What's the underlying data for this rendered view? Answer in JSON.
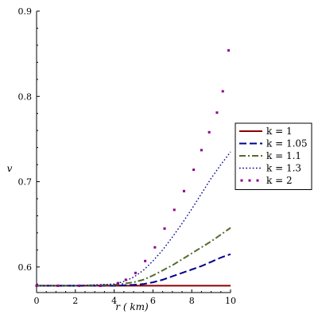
{
  "chart_data": {
    "type": "line",
    "xlabel": "r ( km)",
    "ylabel": "v",
    "xlim": [
      0,
      10
    ],
    "ylim": [
      0.57,
      0.9
    ],
    "x_ticks": [
      0,
      2,
      4,
      6,
      8,
      10
    ],
    "y_ticks": [
      0.6,
      0.7,
      0.8,
      0.9
    ],
    "grid": false,
    "legend_position": "right",
    "series": [
      {
        "name": "k = 1",
        "color": "#8b0000",
        "style": "solid",
        "x": [
          0,
          2,
          4,
          6,
          8,
          10
        ],
        "y": [
          0.578,
          0.578,
          0.578,
          0.578,
          0.578,
          0.578
        ]
      },
      {
        "name": "k = 1.05",
        "color": "#00008b",
        "style": "dashed",
        "x": [
          0,
          2,
          4,
          5,
          5.5,
          6,
          6.5,
          7,
          7.5,
          8,
          8.5,
          9,
          9.5,
          10
        ],
        "y": [
          0.578,
          0.578,
          0.578,
          0.579,
          0.58,
          0.582,
          0.585,
          0.589,
          0.593,
          0.597,
          0.601,
          0.606,
          0.611,
          0.615
        ]
      },
      {
        "name": "k = 1.1",
        "color": "#556b2f",
        "style": "dashdot",
        "x": [
          0,
          2,
          4,
          5,
          5.5,
          6,
          6.5,
          7,
          7.5,
          8,
          8.5,
          9,
          9.5,
          10
        ],
        "y": [
          0.578,
          0.578,
          0.579,
          0.582,
          0.585,
          0.59,
          0.596,
          0.602,
          0.609,
          0.616,
          0.623,
          0.63,
          0.638,
          0.646
        ]
      },
      {
        "name": "k = 1.3",
        "color": "#00008b",
        "style": "dotted",
        "x": [
          0,
          2,
          4,
          4.5,
          5,
          5.5,
          6,
          6.5,
          7,
          7.5,
          8,
          8.5,
          9,
          9.5,
          10
        ],
        "y": [
          0.578,
          0.578,
          0.58,
          0.583,
          0.588,
          0.596,
          0.607,
          0.62,
          0.635,
          0.651,
          0.668,
          0.686,
          0.704,
          0.72,
          0.735
        ]
      },
      {
        "name": "k = 2",
        "color": "#8b008b",
        "style": "points",
        "x": [
          0,
          1.1,
          2.2,
          3.3,
          4.2,
          4.6,
          5.1,
          5.6,
          6.1,
          6.6,
          7.1,
          7.6,
          8.1,
          8.5,
          8.9,
          9.3,
          9.6,
          9.9
        ],
        "y": [
          0.578,
          0.578,
          0.578,
          0.578,
          0.581,
          0.585,
          0.593,
          0.607,
          0.623,
          0.645,
          0.667,
          0.689,
          0.714,
          0.737,
          0.758,
          0.781,
          0.806,
          0.854
        ]
      }
    ]
  }
}
